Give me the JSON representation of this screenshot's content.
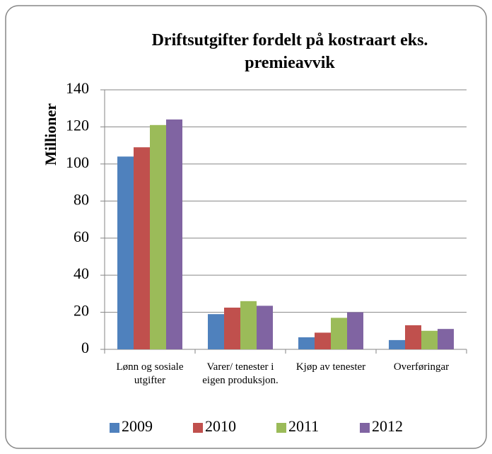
{
  "chart_data": {
    "type": "bar",
    "title": "Driftsutgifter fordelt på kostraart eks. premieavvik",
    "y_label": "Millioner",
    "categories": [
      "Lønn og sosiale utgifter",
      "Varer/ tenester i eigen produksjon.",
      "Kjøp av tenester",
      "Overføringar"
    ],
    "series": [
      {
        "name": "2009",
        "color": "#4f81bd",
        "values": [
          104,
          19,
          6.5,
          5
        ]
      },
      {
        "name": "2010",
        "color": "#c0504d",
        "values": [
          109,
          22.5,
          9,
          13
        ]
      },
      {
        "name": "2011",
        "color": "#9bbb59",
        "values": [
          121,
          26,
          17,
          10
        ]
      },
      {
        "name": "2012",
        "color": "#8064a2",
        "values": [
          124,
          23.5,
          20,
          11
        ]
      }
    ],
    "ylim": [
      0,
      140
    ],
    "yticks": [
      0,
      20,
      40,
      60,
      80,
      100,
      120,
      140
    ],
    "grid": true,
    "legend": "bottom"
  }
}
